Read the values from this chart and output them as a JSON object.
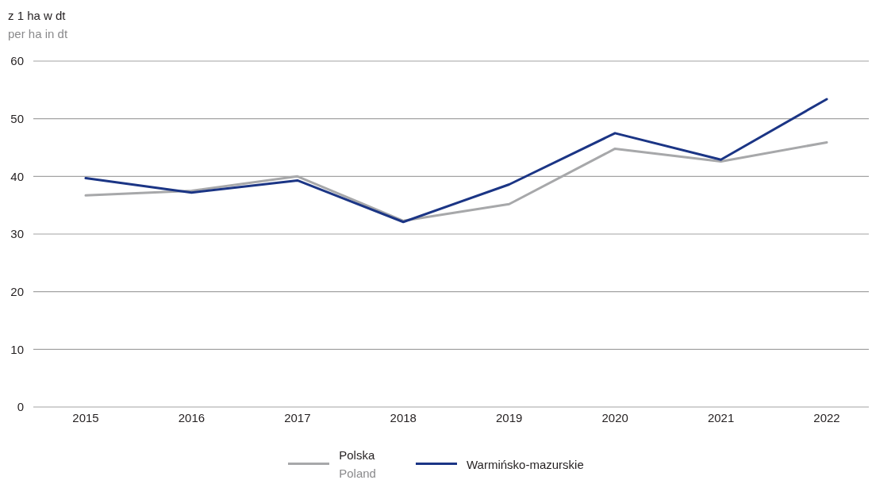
{
  "chart_data": {
    "type": "line",
    "ylabel": "z 1 ha w dt\nper ha in dt",
    "categories": [
      "2015",
      "2016",
      "2017",
      "2018",
      "2019",
      "2020",
      "2021",
      "2022"
    ],
    "series": [
      {
        "name": "Polska\nPoland",
        "color": "#a7a8aa",
        "values": [
          36.7,
          37.5,
          40.0,
          32.3,
          35.2,
          44.8,
          42.6,
          45.9
        ]
      },
      {
        "name": "Warmińsko-mazurskie",
        "color": "#1b3585",
        "values": [
          39.7,
          37.2,
          39.3,
          32.1,
          38.6,
          47.5,
          42.9,
          53.4
        ]
      }
    ],
    "ylim": [
      0,
      60
    ],
    "yticks": [
      0,
      10,
      20,
      30,
      40,
      50,
      60
    ],
    "grid": "y",
    "legend": "bottom"
  }
}
